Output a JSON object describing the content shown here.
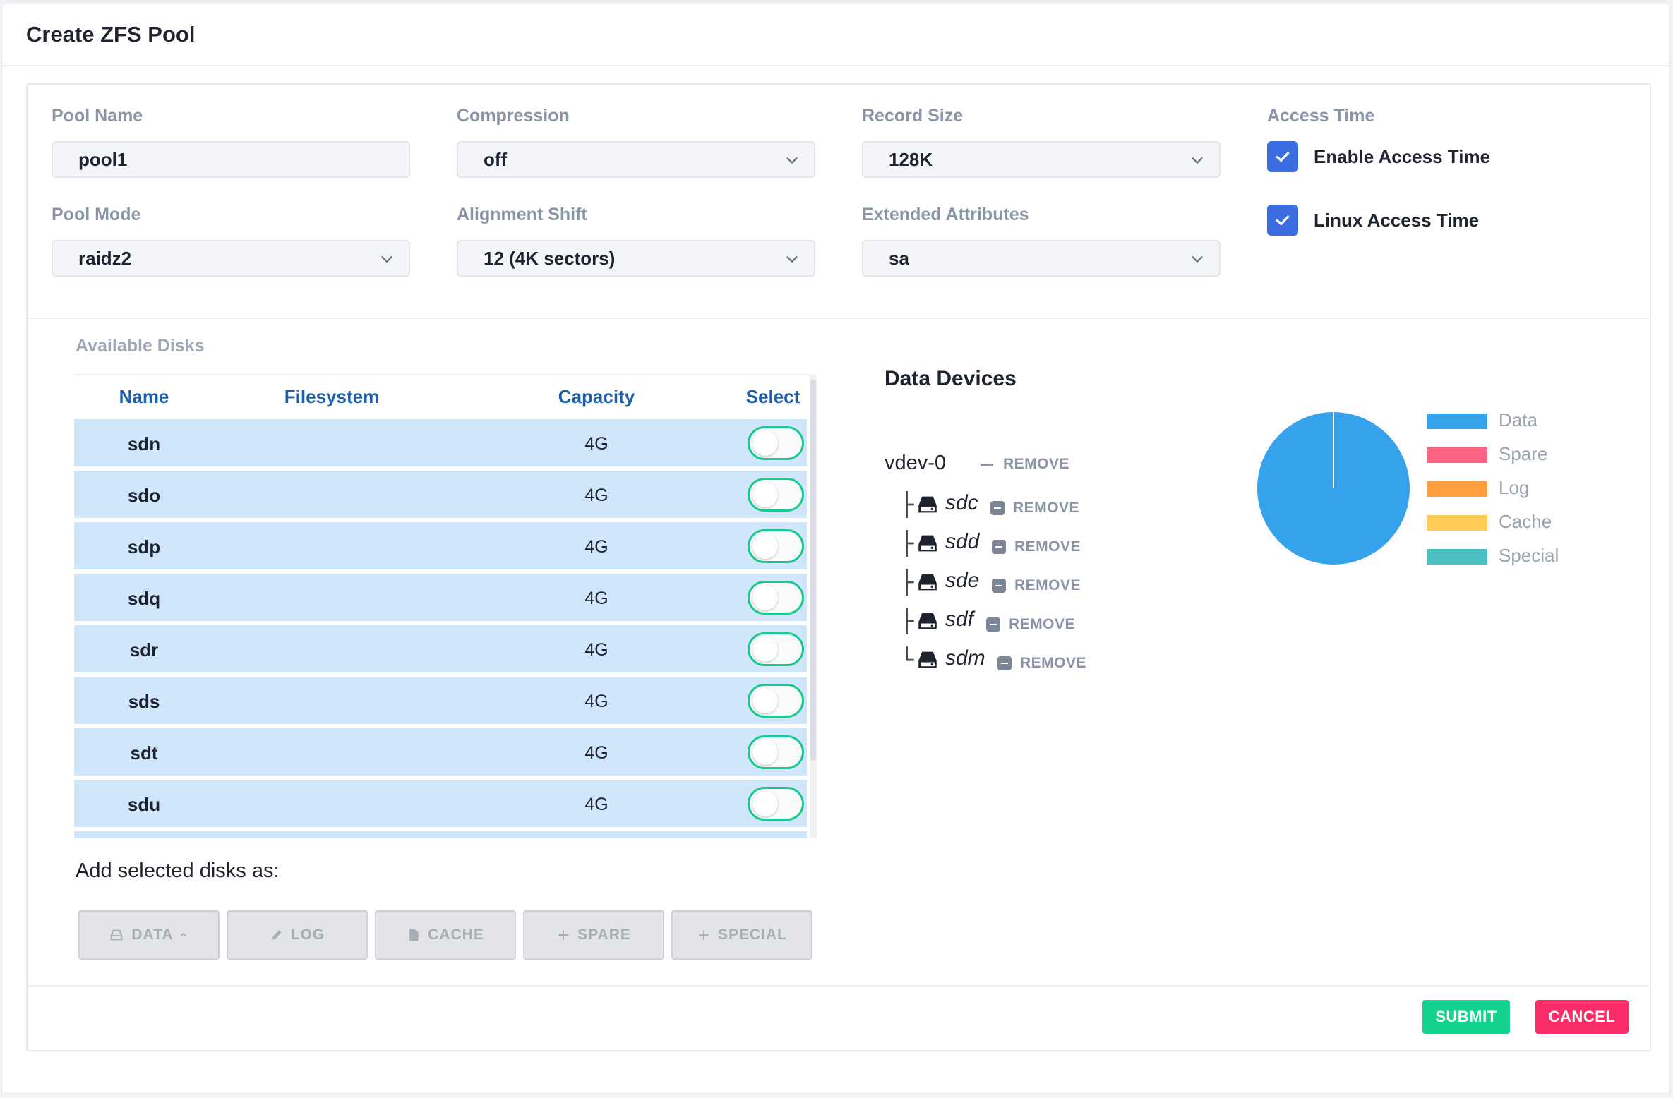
{
  "dialog": {
    "title": "Create ZFS Pool"
  },
  "form": {
    "pool_name": {
      "label": "Pool Name",
      "value": "pool1"
    },
    "compression": {
      "label": "Compression",
      "value": "off"
    },
    "record_size": {
      "label": "Record Size",
      "value": "128K"
    },
    "access_time": {
      "label": "Access Time",
      "enable_label": "Enable Access Time",
      "enable_checked": true,
      "linux_label": "Linux Access Time",
      "linux_checked": true
    },
    "pool_mode": {
      "label": "Pool Mode",
      "value": "raidz2"
    },
    "alignment_shift": {
      "label": "Alignment Shift",
      "value": "12 (4K sectors)"
    },
    "extended_attributes": {
      "label": "Extended Attributes",
      "value": "sa"
    }
  },
  "disks": {
    "label": "Available Disks",
    "columns": [
      "Name",
      "Filesystem",
      "Capacity",
      "Select"
    ],
    "rows": [
      {
        "name": "sdn",
        "filesystem": "",
        "capacity": "4G",
        "selected": false
      },
      {
        "name": "sdo",
        "filesystem": "",
        "capacity": "4G",
        "selected": false
      },
      {
        "name": "sdp",
        "filesystem": "",
        "capacity": "4G",
        "selected": false
      },
      {
        "name": "sdq",
        "filesystem": "",
        "capacity": "4G",
        "selected": false
      },
      {
        "name": "sdr",
        "filesystem": "",
        "capacity": "4G",
        "selected": false
      },
      {
        "name": "sds",
        "filesystem": "",
        "capacity": "4G",
        "selected": false
      },
      {
        "name": "sdt",
        "filesystem": "",
        "capacity": "4G",
        "selected": false
      },
      {
        "name": "sdu",
        "filesystem": "",
        "capacity": "4G",
        "selected": false
      }
    ]
  },
  "add_as": {
    "label": "Add selected disks as:",
    "buttons": {
      "data": "DATA",
      "log": "LOG",
      "cache": "CACHE",
      "spare": "SPARE",
      "special": "SPECIAL"
    }
  },
  "data_devices": {
    "title": "Data Devices",
    "remove_label": "REMOVE",
    "vdevs": [
      {
        "name": "vdev-0",
        "disks": [
          "sdc",
          "sdd",
          "sde",
          "sdf",
          "sdm"
        ]
      }
    ]
  },
  "legend": {
    "items": [
      {
        "label": "Data",
        "color": "#36a2eb"
      },
      {
        "label": "Spare",
        "color": "#ff6384"
      },
      {
        "label": "Log",
        "color": "#ff9f40"
      },
      {
        "label": "Cache",
        "color": "#ffcd56"
      },
      {
        "label": "Special",
        "color": "#4bc0c0"
      }
    ]
  },
  "chart_data": {
    "type": "pie",
    "categories": [
      "Data",
      "Spare",
      "Log",
      "Cache",
      "Special"
    ],
    "values": [
      100,
      0,
      0,
      0,
      0
    ],
    "colors": [
      "#36a2eb",
      "#ff6384",
      "#ff9f40",
      "#ffcd56",
      "#4bc0c0"
    ],
    "legend": "right"
  },
  "footer": {
    "submit_label": "SUBMIT",
    "cancel_label": "CANCEL"
  },
  "colors": {
    "accent": "#3b6de0",
    "submit": "#14d38e",
    "cancel": "#fc2e6a",
    "toggle": "#19c98d"
  }
}
